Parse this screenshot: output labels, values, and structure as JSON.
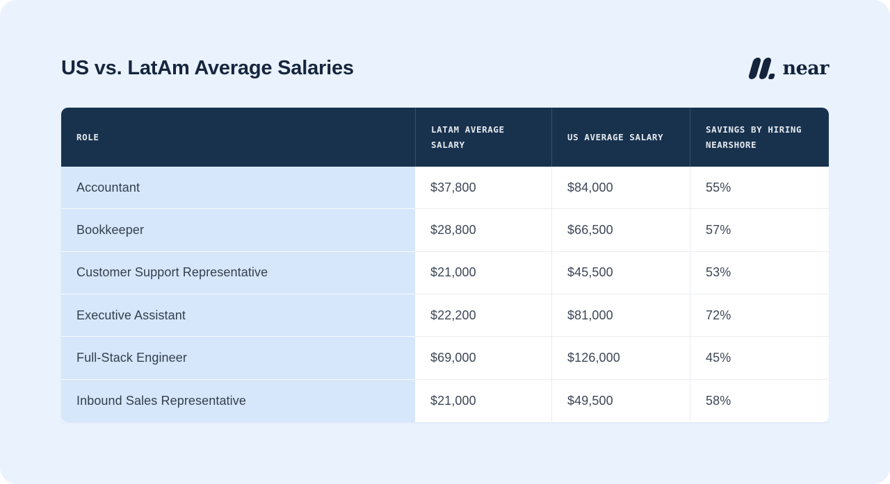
{
  "page": {
    "title": "US vs. LatAm Average Salaries"
  },
  "logo": {
    "mark_icon": "near-logo-mark",
    "wordmark": "near"
  },
  "colors": {
    "card_background": "#e9f2fd",
    "header_background": "#18324e",
    "role_column_background": "#d6e7fb",
    "value_cell_background": "#ffffff",
    "title_text": "#16253e",
    "header_text": "#e4e8ed",
    "body_text": "#3d4756"
  },
  "table": {
    "columns": {
      "role": "ROLE",
      "latam": "LATAM AVERAGE SALARY",
      "us": "US AVERAGE SALARY",
      "savings": "SAVINGS BY HIRING NEARSHORE"
    },
    "rows": [
      {
        "role": "Accountant",
        "latam": "$37,800",
        "us": "$84,000",
        "savings": "55%"
      },
      {
        "role": "Bookkeeper",
        "latam": "$28,800",
        "us": "$66,500",
        "savings": "57%"
      },
      {
        "role": "Customer Support Representative",
        "latam": "$21,000",
        "us": "$45,500",
        "savings": "53%"
      },
      {
        "role": "Executive Assistant",
        "latam": "$22,200",
        "us": "$81,000",
        "savings": "72%"
      },
      {
        "role": "Full-Stack Engineer",
        "latam": "$69,000",
        "us": "$126,000",
        "savings": "45%"
      },
      {
        "role": "Inbound Sales Representative",
        "latam": "$21,000",
        "us": "$49,500",
        "savings": "58%"
      }
    ]
  },
  "chart_data": {
    "type": "table",
    "title": "US vs. LatAm Average Salaries",
    "columns": [
      "ROLE",
      "LATAM AVERAGE SALARY",
      "US AVERAGE SALARY",
      "SAVINGS BY HIRING NEARSHORE"
    ],
    "rows": [
      [
        "Accountant",
        37800,
        84000,
        "55%"
      ],
      [
        "Bookkeeper",
        28800,
        66500,
        "57%"
      ],
      [
        "Customer Support Representative",
        21000,
        45500,
        "53%"
      ],
      [
        "Executive Assistant",
        22200,
        81000,
        "72%"
      ],
      [
        "Full-Stack Engineer",
        69000,
        126000,
        "45%"
      ],
      [
        "Inbound Sales Representative",
        21000,
        49500,
        "58%"
      ]
    ]
  }
}
